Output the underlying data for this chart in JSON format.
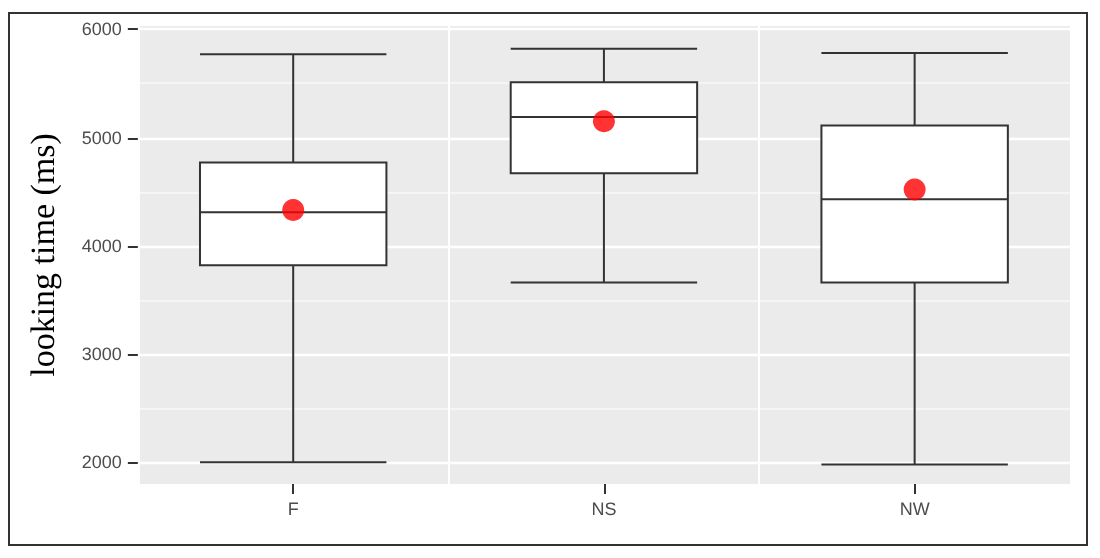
{
  "chart_data": {
    "type": "box",
    "ylabel": "looking time (ms)",
    "categories": [
      "F",
      "NS",
      "NW"
    ],
    "boxes": [
      {
        "low": 2000,
        "q1": 3820,
        "median": 4310,
        "q3": 4770,
        "high": 5770
      },
      {
        "low": 3660,
        "q1": 4670,
        "median": 5190,
        "q3": 5510,
        "high": 5820
      },
      {
        "low": 1980,
        "q1": 3660,
        "median": 4430,
        "q3": 5110,
        "high": 5780
      }
    ],
    "color": "#ffffff",
    "series": [
      {
        "type": "scatter",
        "x": [
          "F",
          "NS",
          "NW"
        ],
        "values": [
          4330,
          5150,
          4520
        ],
        "color": "#ff0000"
      }
    ],
    "marker": "circle",
    "ylim": [
      1800,
      6030
    ],
    "yticks": [
      2000,
      3000,
      4000,
      5000,
      6000
    ],
    "grid": true
  }
}
